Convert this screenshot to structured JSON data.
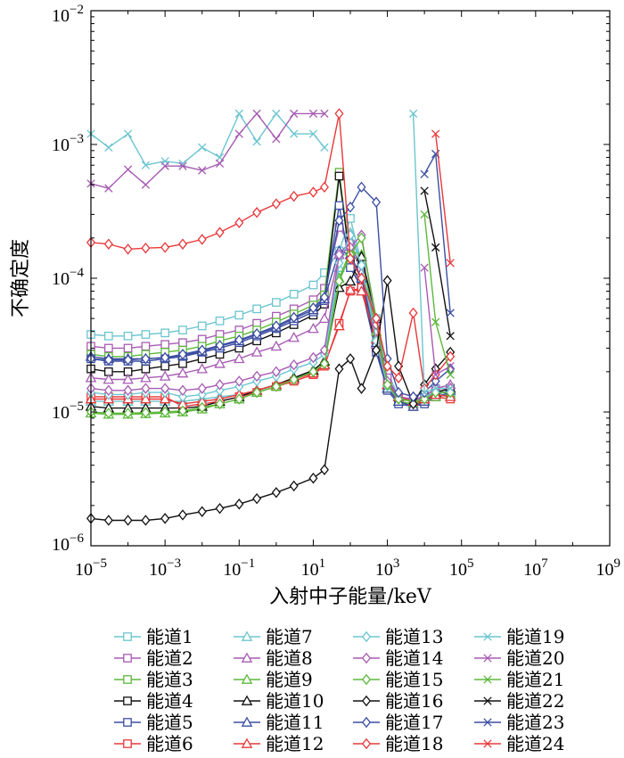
{
  "chart_data": {
    "type": "line",
    "title": "",
    "xlabel": "入射中子能量/keV",
    "ylabel": "不确定度",
    "xscale": "log",
    "yscale": "log",
    "xlim": [
      1e-05,
      1000000000.0
    ],
    "ylim": [
      1e-06,
      0.01
    ],
    "x_ticks": [
      {
        "value": 1e-05,
        "base": "10",
        "exp": "−5"
      },
      {
        "value": 0.001,
        "base": "10",
        "exp": "−3"
      },
      {
        "value": 0.1,
        "base": "10",
        "exp": "−1"
      },
      {
        "value": 10.0,
        "base": "10",
        "exp": "1"
      },
      {
        "value": 1000.0,
        "base": "10",
        "exp": "3"
      },
      {
        "value": 100000.0,
        "base": "10",
        "exp": "5"
      },
      {
        "value": 10000000.0,
        "base": "10",
        "exp": "7"
      },
      {
        "value": 1000000000.0,
        "base": "10",
        "exp": "9"
      }
    ],
    "y_ticks": [
      {
        "value": 1e-06,
        "base": "10",
        "exp": "−6"
      },
      {
        "value": 1e-05,
        "base": "10",
        "exp": "−5"
      },
      {
        "value": 0.0001,
        "base": "10",
        "exp": "−4"
      },
      {
        "value": 0.001,
        "base": "10",
        "exp": "−3"
      },
      {
        "value": 0.01,
        "base": "10",
        "exp": "−2"
      }
    ],
    "x": [
      1e-05,
      3e-05,
      0.0001,
      0.0003,
      0.001,
      0.003,
      0.01,
      0.03,
      0.1,
      0.3,
      1,
      3,
      10,
      20,
      50,
      100,
      200,
      500,
      1000.0,
      2000.0,
      5000.0,
      10000.0,
      20000.0,
      50000.0
    ],
    "legend": {
      "columns": 4,
      "placement": "bottom"
    },
    "series": [
      {
        "name": "能道1",
        "color": "#6cc5cf",
        "marker": "square",
        "values": [
          3.8e-05,
          3.7e-05,
          3.7e-05,
          3.8e-05,
          3.9e-05,
          4.1e-05,
          4.4e-05,
          4.8e-05,
          5.3e-05,
          5.9e-05,
          6.6e-05,
          7.6e-05,
          8.9e-05,
          0.00011,
          0.00016,
          0.00028,
          0.00013,
          5e-05,
          2e-05,
          1.3e-05,
          1.2e-05,
          1.3e-05,
          1.4e-05,
          1.4e-05
        ]
      },
      {
        "name": "能道2",
        "color": "#a75bb3",
        "marker": "square",
        "values": [
          3.1e-05,
          3e-05,
          3e-05,
          3.1e-05,
          3.2e-05,
          3.3e-05,
          3.5e-05,
          3.8e-05,
          4.1e-05,
          4.6e-05,
          5.2e-05,
          5.9e-05,
          6.9e-05,
          8.4e-05,
          0.00024,
          0.00018,
          0.00012,
          4e-05,
          1.8e-05,
          1.3e-05,
          1.2e-05,
          1.3e-05,
          1.5e-05,
          1.5e-05
        ]
      },
      {
        "name": "能道3",
        "color": "#5db83c",
        "marker": "square",
        "values": [
          2.7e-05,
          2.6e-05,
          2.6e-05,
          2.7e-05,
          2.8e-05,
          2.9e-05,
          3.1e-05,
          3.4e-05,
          3.7e-05,
          4.1e-05,
          4.7e-05,
          5.4e-05,
          6.3e-05,
          7.5e-05,
          0.00062,
          0.00014,
          0.0001,
          3.4e-05,
          1.6e-05,
          1.2e-05,
          1.15e-05,
          1.2e-05,
          1.4e-05,
          1.4e-05
        ]
      },
      {
        "name": "能道4",
        "color": "#111111",
        "marker": "square",
        "values": [
          2.1e-05,
          2e-05,
          2e-05,
          2.1e-05,
          2.2e-05,
          2.3e-05,
          2.5e-05,
          2.7e-05,
          3e-05,
          3.4e-05,
          3.9e-05,
          4.5e-05,
          5.3e-05,
          6.4e-05,
          0.00058,
          0.00013,
          9e-05,
          3e-05,
          1.5e-05,
          1.2e-05,
          1.1e-05,
          1.2e-05,
          1.4e-05,
          1.5e-05
        ]
      },
      {
        "name": "能道5",
        "color": "#3c4ea2",
        "marker": "square",
        "values": [
          2.5e-05,
          2.4e-05,
          2.4e-05,
          2.4e-05,
          2.5e-05,
          2.6e-05,
          2.8e-05,
          3e-05,
          3.3e-05,
          3.7e-05,
          4.2e-05,
          4.8e-05,
          5.6e-05,
          6.8e-05,
          0.00035,
          0.00012,
          8.5e-05,
          2.8e-05,
          1.45e-05,
          1.15e-05,
          1.1e-05,
          1.15e-05,
          1.3e-05,
          1.4e-05
        ]
      },
      {
        "name": "能道6",
        "color": "#e8383a",
        "marker": "square",
        "values": [
          1.3e-05,
          1.3e-05,
          1.3e-05,
          1.3e-05,
          1.3e-05,
          1.1e-05,
          1.15e-05,
          1.2e-05,
          1.3e-05,
          1.4e-05,
          1.55e-05,
          1.7e-05,
          1.9e-05,
          2.2e-05,
          4.6e-05,
          8e-05,
          8.5e-05,
          4e-05,
          1.6e-05,
          1.3e-05,
          1.2e-05,
          1.2e-05,
          1.3e-05,
          1.25e-05
        ]
      },
      {
        "name": "能道7",
        "color": "#6cc5cf",
        "marker": "triangle",
        "values": [
          1.2e-05,
          1.2e-05,
          1.2e-05,
          1.2e-05,
          1.2e-05,
          1.2e-05,
          1.25e-05,
          1.3e-05,
          1.35e-05,
          1.45e-05,
          1.6e-05,
          1.8e-05,
          2e-05,
          2.3e-05,
          0.00012,
          0.00022,
          0.00013,
          3.6e-05,
          1.6e-05,
          1.3e-05,
          1.2e-05,
          1.3e-05,
          1.4e-05,
          1.4e-05
        ]
      },
      {
        "name": "能道8",
        "color": "#a75bb3",
        "marker": "triangle",
        "values": [
          1.8e-05,
          1.75e-05,
          1.75e-05,
          1.8e-05,
          1.85e-05,
          1.95e-05,
          2.1e-05,
          2.3e-05,
          2.5e-05,
          2.8e-05,
          3.1e-05,
          3.6e-05,
          4.2e-05,
          5e-05,
          0.00015,
          0.00019,
          0.00011,
          3.2e-05,
          1.5e-05,
          1.3e-05,
          1.2e-05,
          1.3e-05,
          1.5e-05,
          1.6e-05
        ]
      },
      {
        "name": "能道9",
        "color": "#5db83c",
        "marker": "triangle",
        "values": [
          9.8e-06,
          9.6e-06,
          9.6e-06,
          9.7e-06,
          9.8e-06,
          1e-05,
          1.05e-05,
          1.15e-05,
          1.25e-05,
          1.4e-05,
          1.55e-05,
          1.75e-05,
          2e-05,
          2.3e-05,
          0.0001,
          0.00016,
          0.00015,
          4e-05,
          1.5e-05,
          1.2e-05,
          1.15e-05,
          1.2e-05,
          1.3e-05,
          1.35e-05
        ]
      },
      {
        "name": "能道10",
        "color": "#111111",
        "marker": "triangle",
        "values": [
          1.1e-05,
          1.07e-05,
          1.07e-05,
          1.07e-05,
          1.07e-05,
          1.07e-05,
          1.1e-05,
          1.2e-05,
          1.3e-05,
          1.45e-05,
          1.6e-05,
          1.8e-05,
          2.05e-05,
          2.4e-05,
          8.5e-05,
          9.5e-05,
          0.000145,
          5e-05,
          1.6e-05,
          1.3e-05,
          1.2e-05,
          1.25e-05,
          1.4e-05,
          1.5e-05
        ]
      },
      {
        "name": "能道11",
        "color": "#3c4ea2",
        "marker": "triangle",
        "values": [
          2.6e-05,
          2.5e-05,
          2.5e-05,
          2.5e-05,
          2.55e-05,
          2.65e-05,
          2.85e-05,
          3.1e-05,
          3.4e-05,
          3.8e-05,
          4.3e-05,
          5e-05,
          5.8e-05,
          7e-05,
          0.00016,
          0.00015,
          0.0001,
          3.3e-05,
          1.5e-05,
          1.2e-05,
          1.1e-05,
          1.2e-05,
          1.35e-05,
          1.45e-05
        ]
      },
      {
        "name": "能道12",
        "color": "#e8383a",
        "marker": "triangle",
        "values": [
          1.25e-05,
          1.25e-05,
          1.25e-05,
          1.25e-05,
          1.25e-05,
          1.15e-05,
          1.2e-05,
          1.25e-05,
          1.35e-05,
          1.45e-05,
          1.6e-05,
          1.75e-05,
          1.95e-05,
          2.25e-05,
          4.4e-05,
          8.2e-05,
          8e-05,
          3.5e-05,
          1.6e-05,
          1.3e-05,
          1.2e-05,
          1.25e-05,
          1.35e-05,
          1.3e-05
        ]
      },
      {
        "name": "能道13",
        "color": "#6cc5cf",
        "marker": "diamond",
        "values": [
          1.4e-05,
          1.35e-05,
          1.35e-05,
          1.4e-05,
          1.4e-05,
          1.3e-05,
          1.35e-05,
          1.45e-05,
          1.55e-05,
          1.7e-05,
          1.85e-05,
          2.1e-05,
          2.35e-05,
          2.7e-05,
          0.00013,
          0.00021,
          0.000125,
          3.4e-05,
          1.55e-05,
          1.25e-05,
          1.2e-05,
          1.25e-05,
          1.4e-05,
          1.4e-05
        ]
      },
      {
        "name": "能道14",
        "color": "#a75bb3",
        "marker": "diamond",
        "values": [
          1.5e-05,
          1.45e-05,
          1.45e-05,
          1.5e-05,
          1.5e-05,
          1.45e-05,
          1.5e-05,
          1.6e-05,
          1.7e-05,
          1.85e-05,
          2e-05,
          2.25e-05,
          2.55e-05,
          2.9e-05,
          0.00015,
          0.00017,
          0.00021,
          4.5e-05,
          1.7e-05,
          1.3e-05,
          1.25e-05,
          1.3e-05,
          1.5e-05,
          1.5e-05
        ]
      },
      {
        "name": "能道15",
        "color": "#5db83c",
        "marker": "diamond",
        "values": [
          1e-05,
          9.8e-06,
          9.8e-06,
          9.9e-06,
          1e-05,
          1.02e-05,
          1.08e-05,
          1.15e-05,
          1.25e-05,
          1.4e-05,
          1.55e-05,
          1.75e-05,
          2e-05,
          2.3e-05,
          9.5e-05,
          0.00015,
          0.0002,
          5e-05,
          1.6e-05,
          1.25e-05,
          1.2e-05,
          1.25e-05,
          1.4e-05,
          1.4e-05
        ]
      },
      {
        "name": "能道16",
        "color": "#111111",
        "marker": "diamond",
        "values": [
          1.6e-06,
          1.55e-06,
          1.55e-06,
          1.55e-06,
          1.6e-06,
          1.7e-06,
          1.8e-06,
          1.9e-06,
          2.05e-06,
          2.25e-06,
          2.5e-06,
          2.8e-06,
          3.2e-06,
          3.7e-06,
          2.1e-05,
          2.5e-05,
          1.5e-05,
          2.9e-05,
          9.6e-05,
          2.2e-05,
          1.15e-05,
          1.6e-05,
          2.1e-05,
          2.8e-05
        ]
      },
      {
        "name": "能道17",
        "color": "#3c4ea2",
        "marker": "diamond",
        "values": [
          2.5e-05,
          2.45e-05,
          2.45e-05,
          2.5e-05,
          2.55e-05,
          2.7e-05,
          2.9e-05,
          3.15e-05,
          3.45e-05,
          3.85e-05,
          4.4e-05,
          5.1e-05,
          6e-05,
          7.2e-05,
          0.00027,
          0.00034,
          0.00048,
          0.00037,
          2.5e-05,
          1.4e-05,
          1.3e-05,
          1.4e-05,
          1.7e-05,
          2.1e-05
        ]
      },
      {
        "name": "能道18",
        "color": "#e8383a",
        "marker": "diamond",
        "values": [
          0.000185,
          0.00018,
          0.000165,
          0.000168,
          0.00017,
          0.00018,
          0.000195,
          0.00022,
          0.00026,
          0.00031,
          0.00036,
          0.00041,
          0.00044,
          0.00048,
          0.0017,
          0.00014,
          0.0001,
          5e-05,
          2.2e-05,
          1.8e-05,
          5.5e-05,
          1.5e-05,
          1.9e-05,
          2.6e-05
        ]
      },
      {
        "name": "能道19",
        "color": "#6cc5cf",
        "marker": "x",
        "values": [
          0.0012,
          0.00095,
          0.0012,
          0.0007,
          0.00075,
          0.00072,
          0.00095,
          0.0008,
          0.0017,
          0.00105,
          0.0017,
          0.0012,
          0.0012,
          0.00095,
          null,
          null,
          null,
          null,
          null,
          null,
          0.0017,
          1.4e-05,
          1.5e-05,
          1.5e-05
        ]
      },
      {
        "name": "能道20",
        "color": "#a75bb3",
        "marker": "x",
        "values": [
          0.00051,
          0.00047,
          0.00065,
          0.0005,
          0.00069,
          0.00069,
          0.00064,
          0.00072,
          0.0012,
          0.0017,
          0.0011,
          0.0017,
          0.0017,
          0.0017,
          null,
          null,
          null,
          null,
          null,
          null,
          null,
          0.00012,
          1.9e-05,
          2.2e-05
        ]
      },
      {
        "name": "能道21",
        "color": "#5db83c",
        "marker": "x",
        "values": [
          null,
          null,
          null,
          null,
          null,
          null,
          null,
          null,
          null,
          null,
          null,
          null,
          null,
          null,
          null,
          null,
          null,
          null,
          null,
          null,
          null,
          0.0003,
          4.7e-05,
          1.9e-05
        ]
      },
      {
        "name": "能道22",
        "color": "#111111",
        "marker": "x",
        "values": [
          null,
          null,
          null,
          null,
          null,
          null,
          null,
          null,
          null,
          null,
          null,
          null,
          null,
          null,
          null,
          null,
          null,
          null,
          null,
          null,
          null,
          0.00045,
          0.00017,
          3.7e-05
        ]
      },
      {
        "name": "能道23",
        "color": "#3c4ea2",
        "marker": "x",
        "values": [
          null,
          null,
          null,
          null,
          null,
          null,
          null,
          null,
          null,
          null,
          null,
          null,
          null,
          null,
          null,
          null,
          null,
          null,
          null,
          null,
          null,
          0.0006,
          0.00085,
          5.5e-05
        ]
      },
      {
        "name": "能道24",
        "color": "#e8383a",
        "marker": "x",
        "values": [
          null,
          null,
          null,
          null,
          null,
          null,
          null,
          null,
          null,
          null,
          null,
          null,
          null,
          null,
          null,
          null,
          null,
          null,
          null,
          null,
          null,
          null,
          0.0012,
          0.00013
        ]
      }
    ]
  }
}
